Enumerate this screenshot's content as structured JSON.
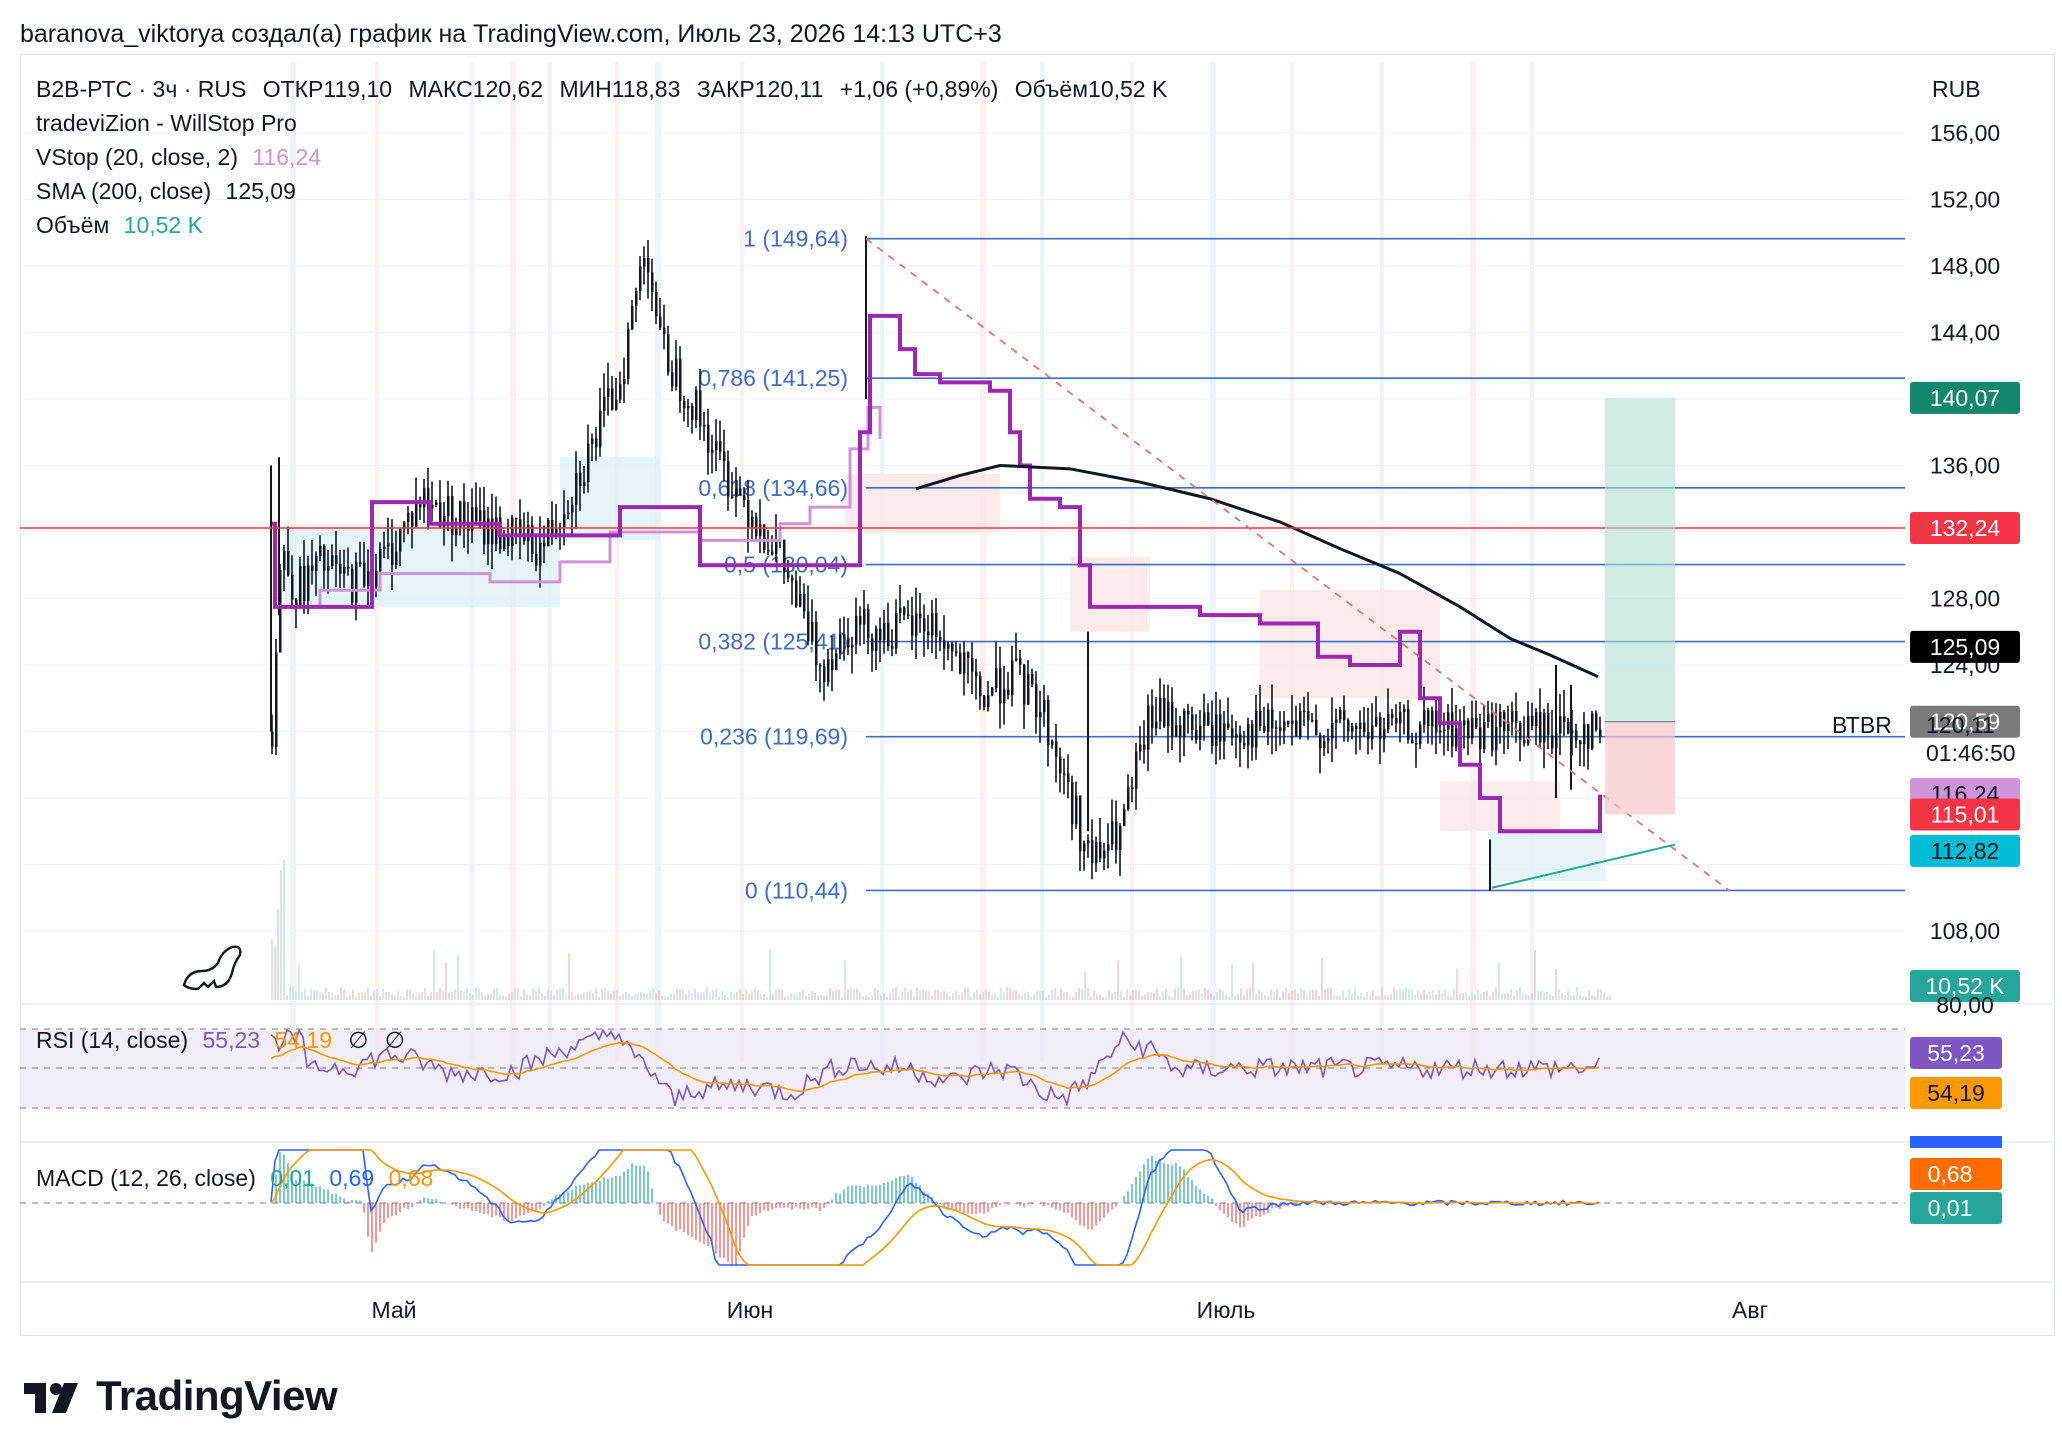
{
  "caption": "baranova_viktorya создал(а) график на TradingView.com, Июль 23, 2026 14:13 UTC+3",
  "header": {
    "symbol": "B2B-РТС · 3ч · RUS",
    "open": "ОТКР119,10",
    "high": "МАКС120,62",
    "low": "МИН118,83",
    "close": "ЗАКР120,11",
    "change": "+1,06 (+0,89%)",
    "volume": "Объём10,52 K"
  },
  "currency": "RUB",
  "indicators": [
    {
      "name": "tradeviZion - WillStop Pro",
      "value": "",
      "color": "#131722"
    },
    {
      "name": "VStop (20, close, 2)",
      "value": "116,24",
      "color": "#ce93d8"
    },
    {
      "name": "SMA (200, close)",
      "value": "125,09",
      "color": "#131722"
    },
    {
      "name": "Объём",
      "value": "10,52 K",
      "color": "#26a69a"
    }
  ],
  "rsi": {
    "label": "RSI (14, close)",
    "value1": "55,23",
    "value2": "54,19",
    "extra1": "∅",
    "extra2": "∅",
    "tag1": "55,23",
    "tag2": "54,19",
    "top_tick": "80,00"
  },
  "macd": {
    "label": "MACD (12, 26, close)",
    "v1": "0,01",
    "v2": "0,69",
    "v3": "0,68",
    "tag1": "0,68",
    "tag2": "0,01",
    "partial_tag": "0,69"
  },
  "price_ticks": [
    "156,00",
    "152,00",
    "148,00",
    "144,00",
    "136,00",
    "128,00",
    "108,00"
  ],
  "hidden_tick": "124,00",
  "price_tags": [
    {
      "value": "140,07",
      "bg": "#13886f",
      "fg": "#ffffff"
    },
    {
      "value": "132,24",
      "bg": "#f23645",
      "fg": "#ffffff"
    },
    {
      "value": "125,09",
      "bg": "#000000",
      "fg": "#ffffff"
    },
    {
      "value": "120,59",
      "bg": "#7b7b7b",
      "fg": "#ffffff"
    },
    {
      "value": "116,24",
      "bg": "#ce93d8",
      "fg": "#131722"
    },
    {
      "value": "115,01",
      "bg": "#f23645",
      "fg": "#ffffff"
    },
    {
      "value": "112,82",
      "bg": "#00bcd4",
      "fg": "#131722"
    },
    {
      "value": "10,52 K",
      "bg": "#26a69a",
      "fg": "#ffffff"
    }
  ],
  "last_price": {
    "value": "120,11",
    "countdown": "01:46:50",
    "label": "ВТВR"
  },
  "fib_levels": [
    {
      "label": "1 (149,64)",
      "price": 149.64
    },
    {
      "label": "0,786 (141,25)",
      "price": 141.25
    },
    {
      "label": "0,618 (134,66)",
      "price": 134.66
    },
    {
      "label": "0,5 (130,04)",
      "price": 130.04
    },
    {
      "label": "0,382 (125,41)",
      "price": 125.41
    },
    {
      "label": "0,236 (119,69)",
      "price": 119.69
    },
    {
      "label": "0 (110,44)",
      "price": 110.44
    }
  ],
  "months": [
    "Май",
    "Июн",
    "Июль",
    "Авг"
  ],
  "logo": "TradingView",
  "chart_data": {
    "type": "candlestick",
    "title": "B2B-РТС · 3ч · RUS",
    "timeframe": "3ч",
    "ylim": [
      105,
      158
    ],
    "x_axis": [
      "Май",
      "Июн",
      "Июль",
      "Авг"
    ],
    "resistance_line": 132.24,
    "position_target": 140.07,
    "position_entry": 120.59,
    "position_stop": 115.01,
    "last": 120.11,
    "sma200": 125.09,
    "vstop": 116.24,
    "close_path": [
      {
        "x": "Апр 24",
        "y": 120.0
      },
      {
        "x": "Апр 25",
        "y": 131.0
      },
      {
        "x": "Апр 28",
        "y": 128.5
      },
      {
        "x": "Май 1",
        "y": 130.0
      },
      {
        "x": "Май 6",
        "y": 129.0
      },
      {
        "x": "Май 12",
        "y": 130.5
      },
      {
        "x": "Май 16",
        "y": 134.0
      },
      {
        "x": "Май 20",
        "y": 132.5
      },
      {
        "x": "Май 24",
        "y": 132.0
      },
      {
        "x": "Май 28",
        "y": 131.0
      },
      {
        "x": "Май 31",
        "y": 137.0
      },
      {
        "x": "Июн 3",
        "y": 141.5
      },
      {
        "x": "Июн 6",
        "y": 149.6
      },
      {
        "x": "Июн 8",
        "y": 143.0
      },
      {
        "x": "Июн 11",
        "y": 140.0
      },
      {
        "x": "Июн 15",
        "y": 136.0
      },
      {
        "x": "Июн 18",
        "y": 131.0
      },
      {
        "x": "Июн 20",
        "y": 124.0
      },
      {
        "x": "Июн 23",
        "y": 126.5
      },
      {
        "x": "Июн 28",
        "y": 126.0
      },
      {
        "x": "Июл 3",
        "y": 126.5
      },
      {
        "x": "Июл 8",
        "y": 122.0
      },
      {
        "x": "Июл 11",
        "y": 123.5
      },
      {
        "x": "Июл 14",
        "y": 121.5
      },
      {
        "x": "Июл 17",
        "y": 112.0
      },
      {
        "x": "Июл 19",
        "y": 114.0
      },
      {
        "x": "Июл 21",
        "y": 121.0
      },
      {
        "x": "Июл 23",
        "y": 120.11
      }
    ]
  }
}
